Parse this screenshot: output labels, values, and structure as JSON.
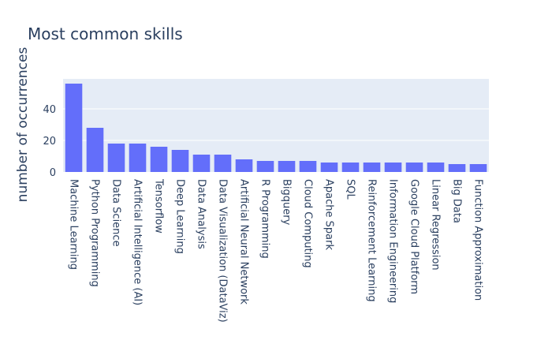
{
  "chart_data": {
    "type": "bar",
    "title": "Most common skills",
    "xlabel": "",
    "ylabel": "number of occurrences",
    "categories": [
      "Machine Learning",
      "Python Programming",
      "Data Science",
      "Artificial Intelligence (AI)",
      "Tensorflow",
      "Deep Learning",
      "Data Analysis",
      "Data Visualization (DataViz)",
      "Artificial Neural Network",
      "R Programming",
      "Bigquery",
      "Cloud Computing",
      "Apache Spark",
      "SQL",
      "Reinforcement Learning",
      "Information Engineering",
      "Google Cloud Platform",
      "Linear Regression",
      "Big Data",
      "Function Approximation"
    ],
    "values": [
      56,
      28,
      18,
      18,
      16,
      14,
      11,
      11,
      8,
      7,
      7,
      7,
      6,
      6,
      6,
      6,
      6,
      6,
      5,
      5
    ],
    "ylim": [
      0,
      59
    ],
    "yticks": [
      0,
      20,
      40
    ],
    "ytick_labels": [
      "0",
      "20",
      "40"
    ],
    "grid": true,
    "legend": "none",
    "colors": {
      "bar": "#636efa",
      "plot_bg": "#e5ecf6",
      "grid": "#ffffff",
      "text": "#2a3f5f"
    }
  }
}
